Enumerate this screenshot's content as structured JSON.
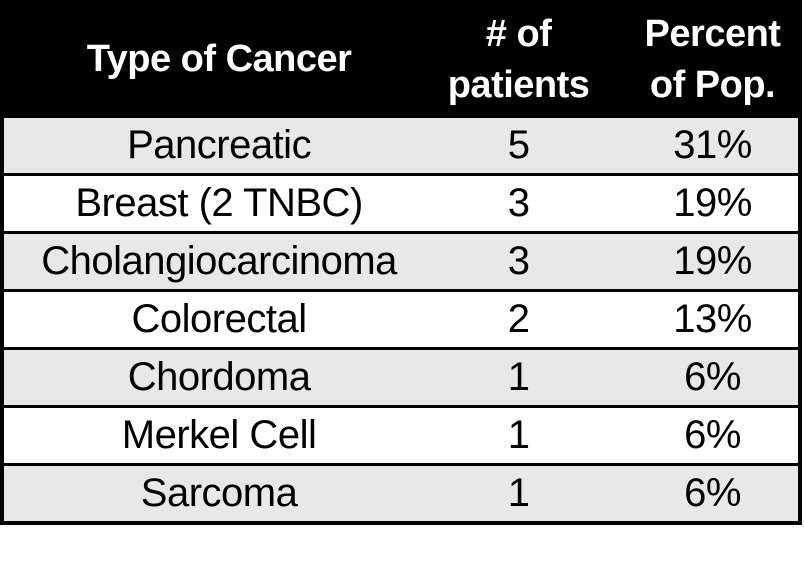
{
  "page": {
    "background": "#ffffff"
  },
  "table": {
    "header": {
      "col1": "Type of Cancer",
      "col2_line1": "# of",
      "col2_line2": "patients",
      "col3_line1": "Percent",
      "col3_line2": "of Pop."
    },
    "rows": [
      {
        "type": "Pancreatic",
        "patients": "5",
        "percent": "31%"
      },
      {
        "type": "Breast (2 TNBC)",
        "patients": "3",
        "percent": "19%"
      },
      {
        "type": "Cholangiocarcinoma",
        "patients": "3",
        "percent": "19%"
      },
      {
        "type": "Colorectal",
        "patients": "2",
        "percent": "13%"
      },
      {
        "type": "Chordoma",
        "patients": "1",
        "percent": "6%"
      },
      {
        "type": "Merkel Cell",
        "patients": "1",
        "percent": "6%"
      },
      {
        "type": "Sarcoma",
        "patients": "1",
        "percent": "6%"
      }
    ],
    "colors": {
      "page_bg": "#ffffff",
      "header_bg": "#000000",
      "header_text": "#ffffff",
      "row_bg": "#ffffff",
      "row_alt_bg": "#e8e8e8",
      "border": "#000000",
      "body_text": "#000000"
    }
  },
  "chart_data": {
    "type": "table",
    "columns": [
      "Type of Cancer",
      "# of patients",
      "Percent of Pop."
    ],
    "rows": [
      [
        "Pancreatic",
        5,
        "31%"
      ],
      [
        "Breast (2 TNBC)",
        3,
        "19%"
      ],
      [
        "Cholangiocarcinoma",
        3,
        "19%"
      ],
      [
        "Colorectal",
        2,
        "13%"
      ],
      [
        "Chordoma",
        1,
        "6%"
      ],
      [
        "Merkel Cell",
        1,
        "6%"
      ],
      [
        "Sarcoma",
        1,
        "6%"
      ]
    ]
  }
}
